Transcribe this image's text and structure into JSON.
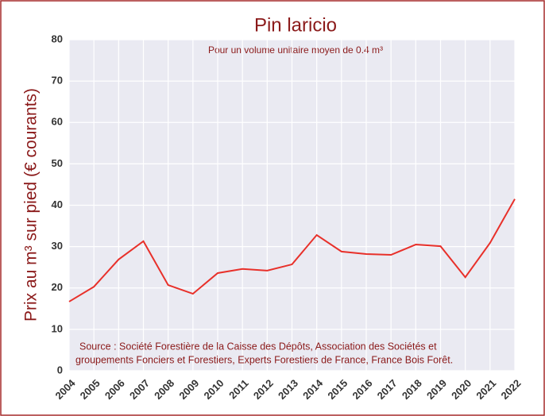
{
  "chart_data": {
    "type": "line",
    "title": "Pin laricio",
    "subtitle": "Pour un volume unitaire moyen de 0.4 m³",
    "y_label": "Prix au m³ sur pied (€ courants)",
    "annotation": [
      "Source : Société Forestière de la Caisse des Dépôts, Association des Sociétés et",
      "groupements Fonciers et Forestiers, Experts Forestiers de France, France Bois Forêt."
    ],
    "categories": [
      "2004",
      "2005",
      "2006",
      "2007",
      "2008",
      "2009",
      "2010",
      "2011",
      "2012",
      "2013",
      "2014",
      "2015",
      "2016",
      "2017",
      "2018",
      "2019",
      "2020",
      "2021",
      "2022"
    ],
    "values": [
      16.7,
      20.3,
      26.9,
      31.3,
      20.7,
      18.6,
      23.6,
      24.6,
      24.2,
      25.7,
      32.8,
      28.8,
      28.2,
      28.0,
      30.5,
      30.1,
      22.6,
      30.9,
      41.5
    ],
    "color": "#e8302a",
    "ylim": [
      0,
      80
    ],
    "yticks": [
      0,
      10,
      20,
      30,
      40,
      50,
      60,
      70,
      80
    ],
    "grid": true
  }
}
